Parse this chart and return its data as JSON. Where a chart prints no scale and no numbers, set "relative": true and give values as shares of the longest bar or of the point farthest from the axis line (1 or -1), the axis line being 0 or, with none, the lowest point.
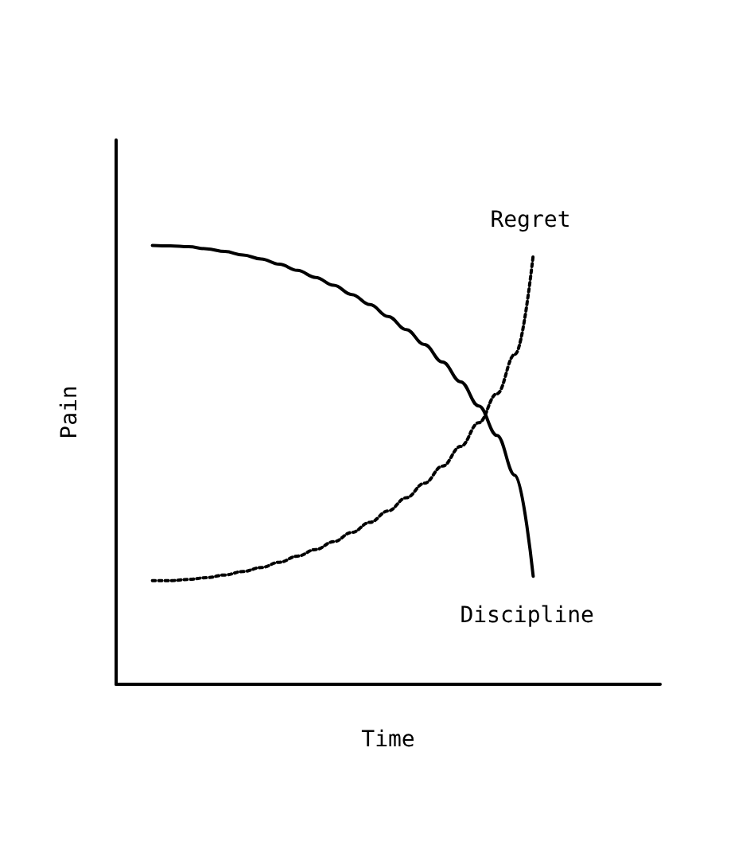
{
  "chart_data": {
    "type": "line",
    "relative": true,
    "xlabel": "Time",
    "ylabel": "Pain",
    "legend": false,
    "grid": false,
    "marker": "none",
    "categories": [
      null,
      null,
      null,
      null,
      null,
      null,
      null,
      null,
      null,
      null,
      null,
      null,
      null,
      null,
      null,
      null,
      null,
      null,
      null,
      null,
      null,
      null,
      null,
      null,
      null,
      null,
      null,
      null,
      null,
      null,
      null
    ],
    "series": [
      {
        "name": "Discipline",
        "color": "#000000",
        "line_style": "solid",
        "values": [
          null,
          null,
          1.0,
          0.999,
          0.997,
          0.992,
          0.986,
          0.978,
          0.969,
          0.957,
          0.943,
          0.927,
          0.909,
          0.888,
          0.865,
          0.838,
          0.808,
          0.774,
          0.734,
          0.689,
          0.634,
          0.567,
          0.476,
          0.246,
          null,
          null,
          null,
          null,
          null,
          null,
          null
        ]
      },
      {
        "name": "Regret",
        "color": "#000000",
        "line_style": "dotted",
        "values": [
          null,
          null,
          0.236,
          0.236,
          0.239,
          0.243,
          0.249,
          0.257,
          0.266,
          0.278,
          0.292,
          0.307,
          0.325,
          0.346,
          0.369,
          0.395,
          0.425,
          0.458,
          0.497,
          0.542,
          0.596,
          0.662,
          0.752,
          0.978,
          null,
          null,
          null,
          null,
          null,
          null,
          null
        ]
      }
    ]
  }
}
